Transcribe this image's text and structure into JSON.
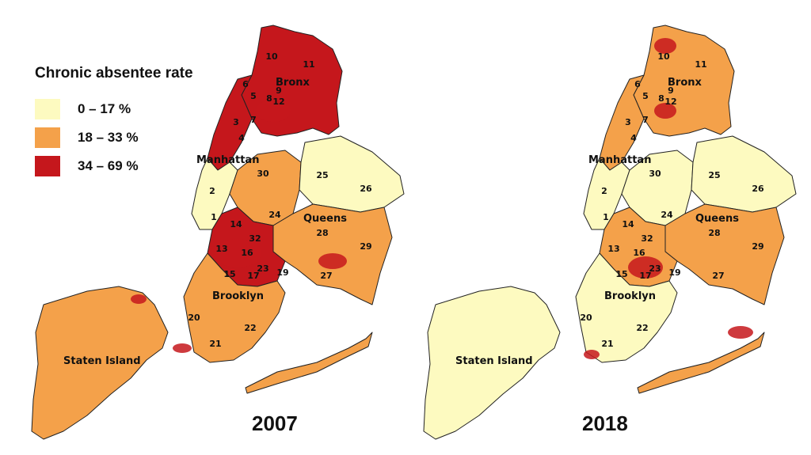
{
  "legend": {
    "title": "Chronic absentee rate",
    "items": [
      {
        "label": "0 – 17 %",
        "color": "#fdfac0"
      },
      {
        "label": "18 – 33 %",
        "color": "#f4a14a"
      },
      {
        "label": "34 – 69 %",
        "color": "#c5171c"
      }
    ]
  },
  "boroughs": [
    "Bronx",
    "Manhattan",
    "Queens",
    "Brooklyn",
    "Staten Island"
  ],
  "district_numbers": [
    "1",
    "2",
    "3",
    "4",
    "5",
    "6",
    "7",
    "8",
    "9",
    "10",
    "11",
    "12",
    "13",
    "14",
    "15",
    "16",
    "17",
    "19",
    "20",
    "21",
    "22",
    "23",
    "24",
    "25",
    "26",
    "27",
    "28",
    "29",
    "30",
    "32"
  ],
  "maps": [
    {
      "year": "2007",
      "levels": {
        "bronx": 2,
        "manhattan_n": 2,
        "manhattan_s": 0,
        "queens_w": 1,
        "queens_e": 0,
        "queens_s": 1,
        "brooklyn_n": 2,
        "brooklyn_s": 1,
        "rockaway": 1,
        "staten": 1
      }
    },
    {
      "year": "2018",
      "levels": {
        "bronx": 1,
        "manhattan_n": 1,
        "manhattan_s": 0,
        "queens_w": 0,
        "queens_e": 0,
        "queens_s": 1,
        "brooklyn_n": 1,
        "brooklyn_s": 0,
        "rockaway": 1,
        "staten": 0
      }
    }
  ]
}
